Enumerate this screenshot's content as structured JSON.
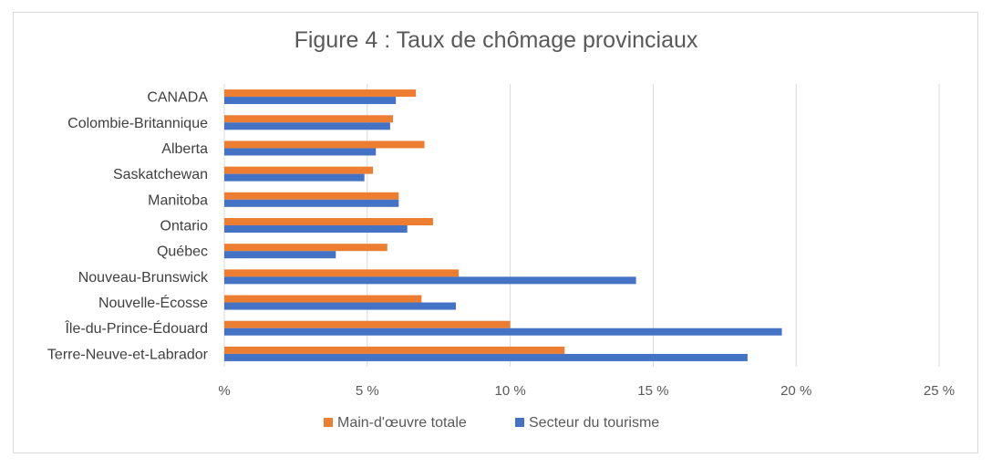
{
  "chart_data": {
    "type": "bar",
    "orientation": "horizontal",
    "title": "Figure 4 : Taux de chômage provinciaux",
    "categories": [
      "CANADA",
      "Colombie-Britannique",
      "Alberta",
      "Saskatchewan",
      "Manitoba",
      "Ontario",
      "Québec",
      "Nouveau-Brunswick",
      "Nouvelle-Écosse",
      "Île-du-Prince-Édouard",
      "Terre-Neuve-et-Labrador"
    ],
    "series": [
      {
        "name": "Main-d'œuvre totale",
        "color": "#ED7D31",
        "values": [
          6.7,
          5.9,
          7.0,
          5.2,
          6.1,
          7.3,
          5.7,
          8.2,
          6.9,
          10.0,
          11.9
        ]
      },
      {
        "name": "Secteur du tourisme",
        "color": "#4472C4",
        "values": [
          6.0,
          5.8,
          5.3,
          4.9,
          6.1,
          6.4,
          3.9,
          14.4,
          8.1,
          19.5,
          18.3
        ]
      }
    ],
    "xlim": [
      0,
      25
    ],
    "x_ticks": [
      {
        "value": 0,
        "label": "%"
      },
      {
        "value": 5,
        "label": "5 %"
      },
      {
        "value": 10,
        "label": "10 %"
      },
      {
        "value": 15,
        "label": "15 %"
      },
      {
        "value": 20,
        "label": "20 %"
      },
      {
        "value": 25,
        "label": "25 %"
      }
    ],
    "grid": true,
    "legend_position": "bottom"
  }
}
